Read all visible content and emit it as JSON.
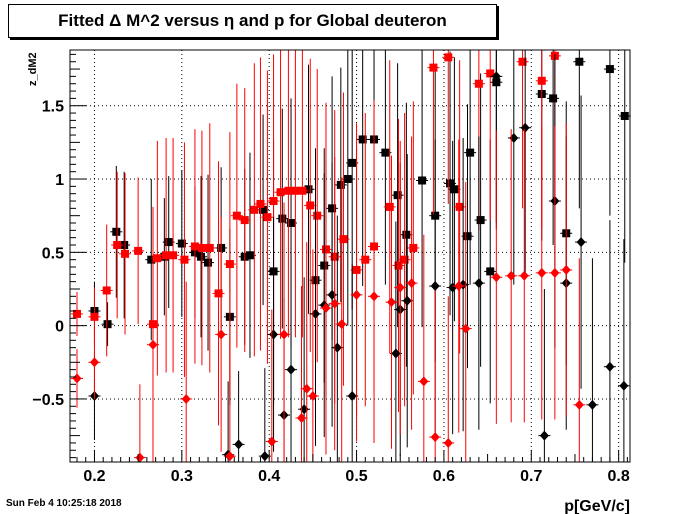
{
  "timestamp": "Sun Feb  4 10:25:18 2018",
  "chart_data": {
    "type": "scatter",
    "title": "Fitted Δ M^2 versus η and p for Global deuteron",
    "xlabel": "p[GeV/c]",
    "ylabel": "z_dM2",
    "xlim": [
      0.172,
      0.813
    ],
    "ylim": [
      -0.93,
      1.88
    ],
    "xticks": [
      "0.2",
      "0.3",
      "0.4",
      "0.5",
      "0.6",
      "0.7",
      "0.8"
    ],
    "yticks": [
      "−0.5",
      "0",
      "0.5",
      "1",
      "1.5"
    ],
    "grid": true,
    "series": [
      {
        "marker": "square",
        "color": "#000000",
        "points": [
          {
            "x": 0.2,
            "y": 0.1,
            "e": 0.2
          },
          {
            "x": 0.215,
            "y": 0.01,
            "e": 0.15
          },
          {
            "x": 0.225,
            "y": 0.64,
            "e": 0.45
          },
          {
            "x": 0.234,
            "y": 0.55,
            "e": 0.5
          },
          {
            "x": 0.265,
            "y": 0.45,
            "e": 0.55
          },
          {
            "x": 0.28,
            "y": 0.47,
            "e": 0.4
          },
          {
            "x": 0.285,
            "y": 0.57,
            "e": 0.45
          },
          {
            "x": 0.3,
            "y": 0.56,
            "e": 0.5
          },
          {
            "x": 0.315,
            "y": 0.5,
            "e": 0.45
          },
          {
            "x": 0.322,
            "y": 0.47,
            "e": 0.55
          },
          {
            "x": 0.33,
            "y": 0.43,
            "e": 0.6
          },
          {
            "x": 0.345,
            "y": 0.53,
            "e": 0.55
          },
          {
            "x": 0.355,
            "y": 0.06,
            "e": 0.6
          },
          {
            "x": 0.372,
            "y": 0.47,
            "e": 0.6
          },
          {
            "x": 0.378,
            "y": 0.48,
            "e": 0.7
          },
          {
            "x": 0.393,
            "y": 0.79,
            "e": 0.65
          },
          {
            "x": 0.405,
            "y": 0.37,
            "e": 0.9
          },
          {
            "x": 0.415,
            "y": 0.73,
            "e": 0.75
          },
          {
            "x": 0.425,
            "y": 0.7,
            "e": 0.85
          },
          {
            "x": 0.445,
            "y": 0.93,
            "e": 0.85
          },
          {
            "x": 0.453,
            "y": 0.31,
            "e": 0.9
          },
          {
            "x": 0.463,
            "y": 0.41,
            "e": 0.8
          },
          {
            "x": 0.472,
            "y": 0.8,
            "e": 0.9
          },
          {
            "x": 0.482,
            "y": 0.96,
            "e": 0.8
          },
          {
            "x": 0.49,
            "y": 1.0,
            "e": 1.0
          },
          {
            "x": 0.495,
            "y": 1.11,
            "e": 1.0
          },
          {
            "x": 0.507,
            "y": 1.27,
            "e": 1.0
          },
          {
            "x": 0.52,
            "y": 1.27,
            "e": 1.0
          },
          {
            "x": 0.533,
            "y": 1.18,
            "e": 0.9
          },
          {
            "x": 0.547,
            "y": 0.89,
            "e": 0.9
          },
          {
            "x": 0.557,
            "y": 0.62,
            "e": 0.9
          },
          {
            "x": 0.575,
            "y": 0.99,
            "e": 1.0
          },
          {
            "x": 0.59,
            "y": 0.75,
            "e": 1.0
          },
          {
            "x": 0.607,
            "y": 0.97,
            "e": 0.9
          },
          {
            "x": 0.612,
            "y": 0.93,
            "e": 0.9
          },
          {
            "x": 0.627,
            "y": 0.61,
            "e": 0.9
          },
          {
            "x": 0.63,
            "y": 1.18,
            "e": 0.9
          },
          {
            "x": 0.642,
            "y": 0.72,
            "e": 1.0
          },
          {
            "x": 0.653,
            "y": 0.37,
            "e": 0.9
          },
          {
            "x": 0.66,
            "y": 1.66,
            "e": 1.0
          },
          {
            "x": 0.712,
            "y": 1.58,
            "e": 1.0
          },
          {
            "x": 0.725,
            "y": 1.55,
            "e": 1.0
          },
          {
            "x": 0.74,
            "y": 0.63,
            "e": 0.9
          },
          {
            "x": 0.755,
            "y": 1.8,
            "e": 1.0
          },
          {
            "x": 0.79,
            "y": 1.75,
            "e": 1.0
          },
          {
            "x": 0.807,
            "y": 1.43,
            "e": 1.0
          }
        ]
      },
      {
        "marker": "square",
        "color": "#ff0000",
        "points": [
          {
            "x": 0.18,
            "y": 0.08,
            "e": 0.15
          },
          {
            "x": 0.2,
            "y": 0.06,
            "e": 0.2
          },
          {
            "x": 0.214,
            "y": 0.24,
            "e": 0.45
          },
          {
            "x": 0.226,
            "y": 0.55,
            "e": 0.5
          },
          {
            "x": 0.235,
            "y": 0.49,
            "e": 0.55
          },
          {
            "x": 0.25,
            "y": 0.51,
            "e": 0.5
          },
          {
            "x": 0.267,
            "y": 0.01,
            "e": 0.8
          },
          {
            "x": 0.272,
            "y": 0.46,
            "e": 0.8
          },
          {
            "x": 0.282,
            "y": 0.48,
            "e": 0.8
          },
          {
            "x": 0.29,
            "y": 0.48,
            "e": 0.8
          },
          {
            "x": 0.303,
            "y": 0.45,
            "e": 0.8
          },
          {
            "x": 0.315,
            "y": 0.54,
            "e": 0.8
          },
          {
            "x": 0.323,
            "y": 0.53,
            "e": 0.8
          },
          {
            "x": 0.332,
            "y": 0.53,
            "e": 0.85
          },
          {
            "x": 0.342,
            "y": 0.22,
            "e": 0.9
          },
          {
            "x": 0.355,
            "y": 0.42,
            "e": 0.9
          },
          {
            "x": 0.363,
            "y": 0.75,
            "e": 0.9
          },
          {
            "x": 0.372,
            "y": 0.72,
            "e": 0.9
          },
          {
            "x": 0.383,
            "y": 0.79,
            "e": 1.0
          },
          {
            "x": 0.39,
            "y": 0.83,
            "e": 1.0
          },
          {
            "x": 0.398,
            "y": 0.74,
            "e": 1.0
          },
          {
            "x": 0.405,
            "y": 0.85,
            "e": 1.0
          },
          {
            "x": 0.413,
            "y": 0.91,
            "e": 1.0
          },
          {
            "x": 0.422,
            "y": 0.92,
            "e": 1.0
          },
          {
            "x": 0.43,
            "y": 0.92,
            "e": 1.0
          },
          {
            "x": 0.438,
            "y": 0.92,
            "e": 1.0
          },
          {
            "x": 0.447,
            "y": 0.82,
            "e": 1.0
          },
          {
            "x": 0.455,
            "y": 0.75,
            "e": 1.0
          },
          {
            "x": 0.465,
            "y": 0.52,
            "e": 1.0
          },
          {
            "x": 0.475,
            "y": 0.47,
            "e": 1.0
          },
          {
            "x": 0.485,
            "y": 0.59,
            "e": 1.0
          },
          {
            "x": 0.5,
            "y": 0.38,
            "e": 1.0
          },
          {
            "x": 0.51,
            "y": 0.45,
            "e": 1.0
          },
          {
            "x": 0.52,
            "y": 0.54,
            "e": 1.0
          },
          {
            "x": 0.538,
            "y": 0.81,
            "e": 1.0
          },
          {
            "x": 0.548,
            "y": 0.41,
            "e": 1.0
          },
          {
            "x": 0.555,
            "y": 0.45,
            "e": 1.0
          },
          {
            "x": 0.565,
            "y": 0.53,
            "e": 1.0
          },
          {
            "x": 0.588,
            "y": 1.76,
            "e": 1.0
          },
          {
            "x": 0.605,
            "y": 1.83,
            "e": 1.0
          },
          {
            "x": 0.618,
            "y": 0.81,
            "e": 1.0
          },
          {
            "x": 0.64,
            "y": 1.65,
            "e": 1.0
          },
          {
            "x": 0.653,
            "y": 1.72,
            "e": 1.0
          },
          {
            "x": 0.69,
            "y": 1.8,
            "e": 1.0
          },
          {
            "x": 0.712,
            "y": 1.67,
            "e": 1.0
          },
          {
            "x": 0.727,
            "y": 1.84,
            "e": 1.0
          }
        ]
      },
      {
        "marker": "diamond",
        "color": "#000000",
        "points": [
          {
            "x": 0.2,
            "y": -0.48,
            "e": 0.3
          },
          {
            "x": 0.353,
            "y": -0.88,
            "e": 0.5
          },
          {
            "x": 0.365,
            "y": -0.81,
            "e": 0.5
          },
          {
            "x": 0.395,
            "y": -0.89,
            "e": 0.6
          },
          {
            "x": 0.405,
            "y": -0.06,
            "e": 0.8
          },
          {
            "x": 0.417,
            "y": -0.61,
            "e": 0.8
          },
          {
            "x": 0.425,
            "y": -0.3,
            "e": 0.8
          },
          {
            "x": 0.44,
            "y": -0.57,
            "e": 0.9
          },
          {
            "x": 0.453,
            "y": 0.08,
            "e": 0.9
          },
          {
            "x": 0.463,
            "y": 0.14,
            "e": 0.9
          },
          {
            "x": 0.472,
            "y": 0.21,
            "e": 0.9
          },
          {
            "x": 0.478,
            "y": -0.15,
            "e": 0.9
          },
          {
            "x": 0.495,
            "y": -0.48,
            "e": 0.9
          },
          {
            "x": 0.545,
            "y": -0.19,
            "e": 0.9
          },
          {
            "x": 0.55,
            "y": 0.11,
            "e": 1.0
          },
          {
            "x": 0.558,
            "y": 0.17,
            "e": 1.0
          },
          {
            "x": 0.59,
            "y": 0.27,
            "e": 1.0
          },
          {
            "x": 0.61,
            "y": 0.26,
            "e": 1.0
          },
          {
            "x": 0.622,
            "y": 0.28,
            "e": 1.0
          },
          {
            "x": 0.64,
            "y": 0.29,
            "e": 1.0
          },
          {
            "x": 0.66,
            "y": 1.7,
            "e": 1.0
          },
          {
            "x": 0.68,
            "y": 1.28,
            "e": 1.0
          },
          {
            "x": 0.693,
            "y": 1.35,
            "e": 1.0
          },
          {
            "x": 0.715,
            "y": -0.75,
            "e": 1.0
          },
          {
            "x": 0.727,
            "y": 0.85,
            "e": 1.0
          },
          {
            "x": 0.74,
            "y": 0.29,
            "e": 1.0
          },
          {
            "x": 0.757,
            "y": 0.57,
            "e": 1.0
          },
          {
            "x": 0.77,
            "y": -0.54,
            "e": 1.0
          },
          {
            "x": 0.79,
            "y": -0.28,
            "e": 1.0
          },
          {
            "x": 0.806,
            "y": -0.41,
            "e": 1.0
          }
        ]
      },
      {
        "marker": "diamond",
        "color": "#ff0000",
        "points": [
          {
            "x": 0.18,
            "y": -0.36,
            "e": 0.2
          },
          {
            "x": 0.2,
            "y": -0.25,
            "e": 0.25
          },
          {
            "x": 0.252,
            "y": -0.9,
            "e": 0.5
          },
          {
            "x": 0.267,
            "y": -0.13,
            "e": 0.8
          },
          {
            "x": 0.305,
            "y": -0.5,
            "e": 0.8
          },
          {
            "x": 0.345,
            "y": -0.06,
            "e": 0.8
          },
          {
            "x": 0.355,
            "y": -0.89,
            "e": 0.8
          },
          {
            "x": 0.403,
            "y": -0.79,
            "e": 0.9
          },
          {
            "x": 0.417,
            "y": -0.06,
            "e": 0.9
          },
          {
            "x": 0.437,
            "y": -0.63,
            "e": 0.9
          },
          {
            "x": 0.443,
            "y": -0.43,
            "e": 1.0
          },
          {
            "x": 0.45,
            "y": -0.48,
            "e": 1.0
          },
          {
            "x": 0.465,
            "y": 0.12,
            "e": 1.0
          },
          {
            "x": 0.475,
            "y": 0.15,
            "e": 1.0
          },
          {
            "x": 0.483,
            "y": 0.01,
            "e": 1.0
          },
          {
            "x": 0.5,
            "y": 0.21,
            "e": 1.0
          },
          {
            "x": 0.52,
            "y": 0.2,
            "e": 1.0
          },
          {
            "x": 0.54,
            "y": 0.16,
            "e": 1.0
          },
          {
            "x": 0.55,
            "y": 0.26,
            "e": 1.0
          },
          {
            "x": 0.563,
            "y": 0.29,
            "e": 1.0
          },
          {
            "x": 0.577,
            "y": -0.38,
            "e": 1.0
          },
          {
            "x": 0.59,
            "y": -0.76,
            "e": 1.0
          },
          {
            "x": 0.605,
            "y": -0.8,
            "e": 1.0
          },
          {
            "x": 0.617,
            "y": 0.27,
            "e": 1.0
          },
          {
            "x": 0.625,
            "y": -0.02,
            "e": 1.0
          },
          {
            "x": 0.66,
            "y": 0.33,
            "e": 1.0
          },
          {
            "x": 0.677,
            "y": 0.34,
            "e": 1.0
          },
          {
            "x": 0.692,
            "y": 0.34,
            "e": 1.0
          },
          {
            "x": 0.712,
            "y": 0.36,
            "e": 1.0
          },
          {
            "x": 0.727,
            "y": 0.36,
            "e": 1.0
          },
          {
            "x": 0.74,
            "y": 0.38,
            "e": 1.0
          },
          {
            "x": 0.755,
            "y": -0.54,
            "e": 1.0
          }
        ]
      }
    ]
  }
}
